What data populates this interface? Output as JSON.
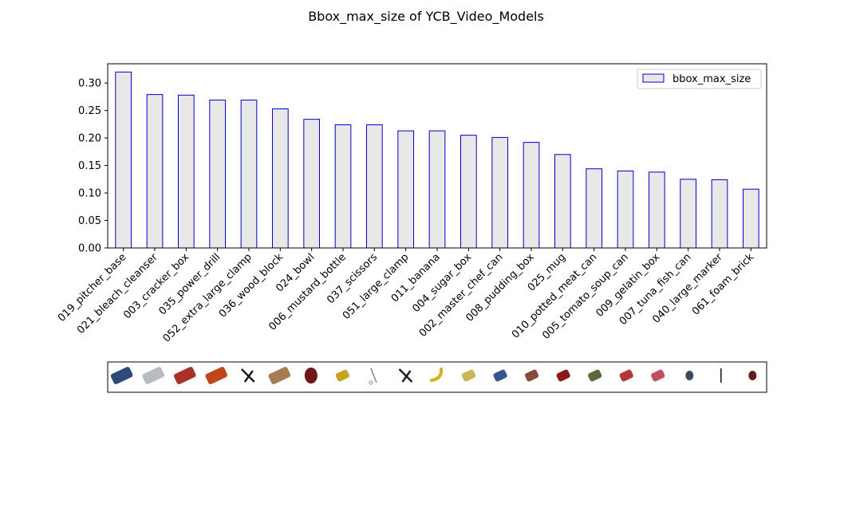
{
  "chart_data": {
    "type": "bar",
    "title": "Bbox_max_size of YCB_Video_Models",
    "xlabel": "",
    "ylabel": "",
    "ylim": [
      0,
      0.335
    ],
    "yticks": [
      "0.00",
      "0.05",
      "0.10",
      "0.15",
      "0.20",
      "0.25",
      "0.30"
    ],
    "ytick_values": [
      0,
      0.05,
      0.1,
      0.15,
      0.2,
      0.25,
      0.3
    ],
    "grid": false,
    "legend_position": "top-right",
    "categories": [
      "019_pitcher_base",
      "021_bleach_cleanser",
      "003_cracker_box",
      "035_power_drill",
      "052_extra_large_clamp",
      "036_wood_block",
      "024_bowl",
      "006_mustard_bottle",
      "037_scissors",
      "051_large_clamp",
      "011_banana",
      "004_sugar_box",
      "002_master_chef_can",
      "008_pudding_box",
      "025_mug",
      "010_potted_meat_can",
      "005_tomato_soup_can",
      "009_gelatin_box",
      "007_tuna_fish_can",
      "040_large_marker",
      "061_foam_brick"
    ],
    "series": [
      {
        "name": "bbox_max_size",
        "values": [
          0.32,
          0.279,
          0.278,
          0.269,
          0.269,
          0.253,
          0.234,
          0.224,
          0.224,
          0.213,
          0.213,
          0.205,
          0.201,
          0.192,
          0.17,
          0.144,
          0.14,
          0.138,
          0.125,
          0.124,
          0.107
        ],
        "fill": "#e8e8e8",
        "edge": "#0000cc"
      }
    ],
    "thumbnails": [
      {
        "icon": "pitcher-icon",
        "color": "#2e4a7a"
      },
      {
        "icon": "bleach-bottle-icon",
        "color": "#b8bcc0"
      },
      {
        "icon": "cracker-box-icon",
        "color": "#a8302a"
      },
      {
        "icon": "power-drill-icon",
        "color": "#c0441c"
      },
      {
        "icon": "clamp-icon",
        "color": "#1a1a1a"
      },
      {
        "icon": "wood-block-icon",
        "color": "#a87c52"
      },
      {
        "icon": "bowl-icon",
        "color": "#6e1616"
      },
      {
        "icon": "mustard-bottle-icon",
        "color": "#c8a424"
      },
      {
        "icon": "scissors-icon",
        "color": "#8a8a8a"
      },
      {
        "icon": "clamp-icon",
        "color": "#1a1a1a"
      },
      {
        "icon": "banana-icon",
        "color": "#d8b020"
      },
      {
        "icon": "sugar-box-icon",
        "color": "#c8b850"
      },
      {
        "icon": "coffee-can-icon",
        "color": "#35568c"
      },
      {
        "icon": "pudding-box-icon",
        "color": "#8a4a3a"
      },
      {
        "icon": "mug-icon",
        "color": "#8a1a1a"
      },
      {
        "icon": "meat-can-icon",
        "color": "#5a6a3a"
      },
      {
        "icon": "soup-can-icon",
        "color": "#b03a3a"
      },
      {
        "icon": "gelatin-box-icon",
        "color": "#c05060"
      },
      {
        "icon": "tuna-can-icon",
        "color": "#3a4a5a"
      },
      {
        "icon": "marker-icon",
        "color": "#202020"
      },
      {
        "icon": "foam-brick-icon",
        "color": "#6a1a1a"
      }
    ]
  }
}
